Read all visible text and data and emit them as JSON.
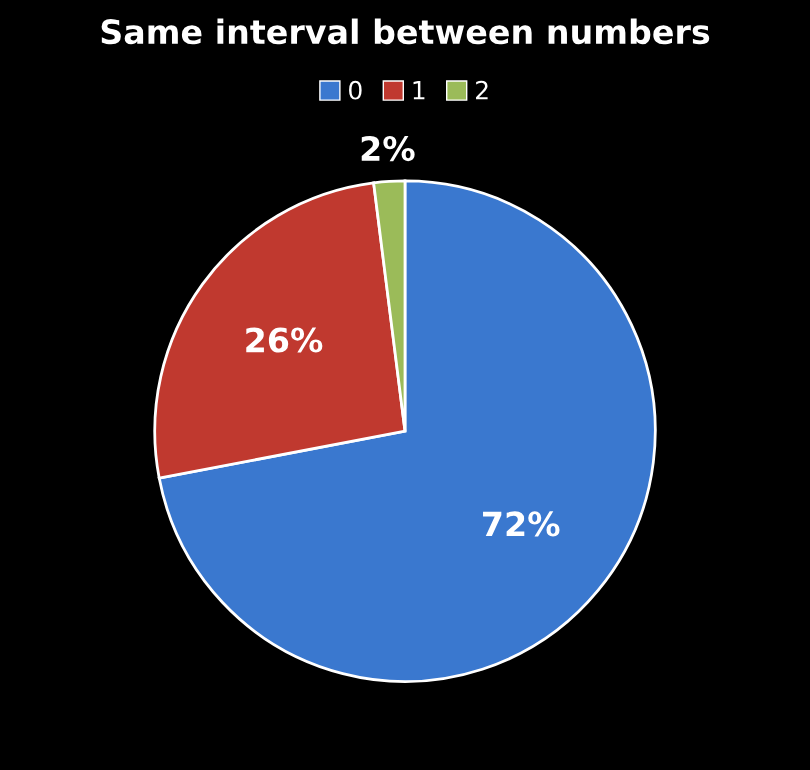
{
  "chart_data": {
    "type": "pie",
    "title": "Same interval between numbers",
    "categories": [
      "0",
      "1",
      "2"
    ],
    "values": [
      72,
      26,
      2
    ],
    "colors": [
      "#3a78cf",
      "#c0392f",
      "#9bbb59"
    ],
    "value_labels": [
      "72%",
      "26%",
      "2%"
    ],
    "legend": "top"
  }
}
